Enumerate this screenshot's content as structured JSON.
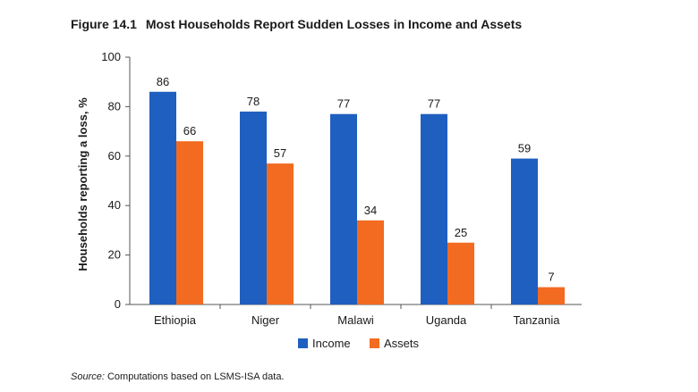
{
  "figure": {
    "number": "Figure 14.1",
    "title": "Most Households Report Sudden Losses in Income and Assets"
  },
  "chart_data": {
    "type": "bar",
    "title": "Most Households Report Sudden Losses in Income and Assets",
    "xlabel": "",
    "ylabel": "Households reporting a loss, %",
    "ylim": [
      0,
      100
    ],
    "yticks": [
      0,
      20,
      40,
      60,
      80,
      100
    ],
    "grid": false,
    "legend_position": "bottom",
    "categories": [
      "Ethiopia",
      "Niger",
      "Malawi",
      "Uganda",
      "Tanzania"
    ],
    "series": [
      {
        "name": "Income",
        "color": "#1f5fbf",
        "values": [
          86,
          78,
          77,
          77,
          59
        ]
      },
      {
        "name": "Assets",
        "color": "#f26b21",
        "values": [
          66,
          57,
          34,
          25,
          7
        ]
      }
    ]
  },
  "source": {
    "label": "Source:",
    "text": "Computations based on LSMS-ISA data."
  }
}
